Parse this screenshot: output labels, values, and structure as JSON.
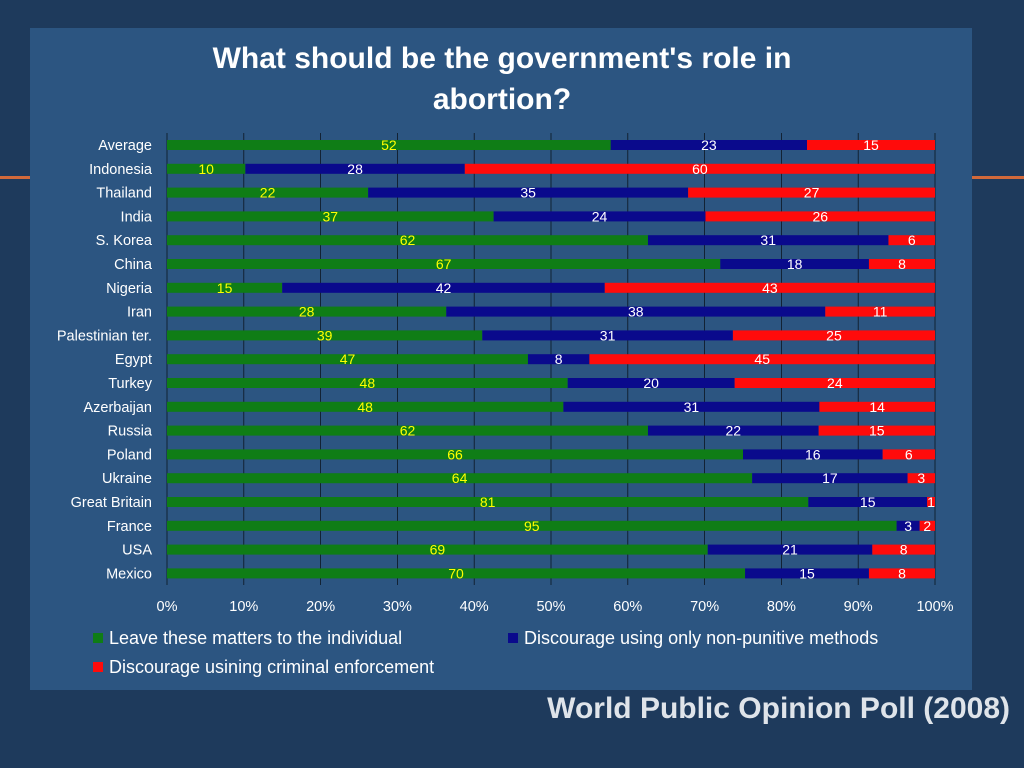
{
  "slide": {
    "title_line1": "What should be the government's role in",
    "title_line2": "abortion?",
    "source": "World Public Opinion Poll (2008)",
    "colors": {
      "background": "#1e3a5c",
      "panel": "#2c5581",
      "accent": "#d2693a"
    }
  },
  "chart_data": {
    "type": "bar",
    "orientation": "horizontal",
    "stacked": "percent",
    "title": "What should be the government's role in abortion?",
    "categories": [
      "Average",
      "Indonesia",
      "Thailand",
      "India",
      "S. Korea",
      "China",
      "Nigeria",
      "Iran",
      "Palestinian ter.",
      "Egypt",
      "Turkey",
      "Azerbaijan",
      "Russia",
      "Poland",
      "Ukraine",
      "Great Britain",
      "France",
      "USA",
      "Mexico"
    ],
    "series": [
      {
        "name": "Leave these matters to the individual",
        "color": "#0f7d16",
        "values": [
          52,
          10,
          22,
          37,
          62,
          67,
          15,
          28,
          39,
          47,
          48,
          48,
          62,
          66,
          64,
          81,
          95,
          69,
          70
        ]
      },
      {
        "name": "Discourage using only non-punitive methods",
        "color": "#0a0a8c",
        "values": [
          23,
          28,
          35,
          24,
          31,
          18,
          42,
          38,
          31,
          8,
          20,
          31,
          22,
          16,
          17,
          15,
          3,
          21,
          15
        ]
      },
      {
        "name": "Discourage usining criminal enforcement",
        "color": "#ff0b0b",
        "values": [
          15,
          60,
          27,
          26,
          6,
          8,
          43,
          11,
          25,
          45,
          24,
          14,
          15,
          6,
          3,
          1,
          2,
          8,
          8
        ]
      }
    ],
    "x_ticks": [
      "0%",
      "10%",
      "20%",
      "30%",
      "40%",
      "50%",
      "60%",
      "70%",
      "80%",
      "90%",
      "100%"
    ],
    "xlim": [
      0,
      100
    ],
    "grid": true,
    "legend_position": "bottom"
  }
}
